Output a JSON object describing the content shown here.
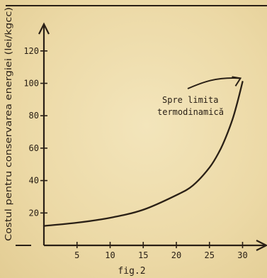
{
  "chart_data": {
    "type": "line",
    "title": "",
    "ylabel": "Costul pentru conservarea energiei (lei/kgcc)",
    "xlabel": "",
    "caption": "fig.2",
    "xlim": [
      0,
      32
    ],
    "ylim": [
      0,
      130
    ],
    "xticks": [
      5,
      10,
      15,
      20,
      25,
      30
    ],
    "yticks": [
      20,
      40,
      60,
      80,
      100,
      120
    ],
    "grid": false,
    "series": [
      {
        "x": [
          0,
          5,
          10,
          15,
          20,
          22.5,
          25,
          26.5,
          27.5,
          28.5,
          29.2,
          29.7,
          30.0
        ],
        "y": [
          12,
          14,
          17,
          22,
          31,
          37,
          48,
          58,
          67,
          78,
          88,
          96,
          101
        ]
      }
    ],
    "annotation": {
      "lines": [
        "Spre limita",
        "termodinamică"
      ],
      "arrow_tip": [
        30.0,
        104
      ]
    },
    "colors": {
      "ink": "#2a2016",
      "paper": "#efdfb0"
    }
  }
}
